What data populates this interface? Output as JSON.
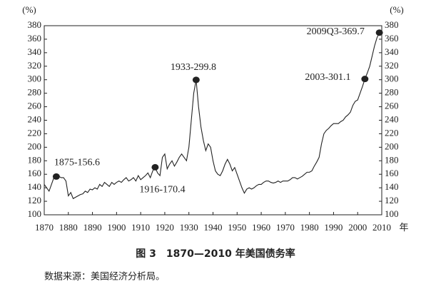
{
  "chart_data": {
    "type": "line",
    "caption": "图 3　1870—2010 年美国债务率",
    "source": "数据来源：美国经济分析局。",
    "y_unit": "(%)",
    "y2_unit": "(%)",
    "x_unit": "年",
    "xlim": [
      1870,
      2010
    ],
    "xticks": [
      1870,
      1880,
      1890,
      1900,
      1910,
      1920,
      1930,
      1940,
      1950,
      1960,
      1970,
      1980,
      1990,
      2000,
      2010
    ],
    "ylim": [
      100,
      380
    ],
    "yticks": [
      100,
      120,
      140,
      160,
      180,
      200,
      220,
      240,
      260,
      280,
      300,
      320,
      340,
      360,
      380
    ],
    "y2lim": [
      100,
      380
    ],
    "y2ticks": [
      100,
      120,
      140,
      160,
      180,
      200,
      220,
      240,
      260,
      280,
      300,
      320,
      340,
      360,
      380
    ],
    "color": "#222222",
    "x": [
      1870,
      1871,
      1872,
      1873,
      1874,
      1875,
      1876,
      1877,
      1878,
      1879,
      1880,
      1881,
      1882,
      1883,
      1884,
      1885,
      1886,
      1887,
      1888,
      1889,
      1890,
      1891,
      1892,
      1893,
      1894,
      1895,
      1896,
      1897,
      1898,
      1899,
      1900,
      1901,
      1902,
      1903,
      1904,
      1905,
      1906,
      1907,
      1908,
      1909,
      1910,
      1911,
      1912,
      1913,
      1914,
      1915,
      1916,
      1917,
      1918,
      1919,
      1920,
      1921,
      1922,
      1923,
      1924,
      1925,
      1926,
      1927,
      1928,
      1929,
      1930,
      1931,
      1932,
      1933,
      1934,
      1935,
      1936,
      1937,
      1938,
      1939,
      1940,
      1941,
      1942,
      1943,
      1944,
      1945,
      1946,
      1947,
      1948,
      1949,
      1950,
      1951,
      1952,
      1953,
      1954,
      1955,
      1956,
      1957,
      1958,
      1959,
      1960,
      1961,
      1962,
      1963,
      1964,
      1965,
      1966,
      1967,
      1968,
      1969,
      1970,
      1971,
      1972,
      1973,
      1974,
      1975,
      1976,
      1977,
      1978,
      1979,
      1980,
      1981,
      1982,
      1983,
      1984,
      1985,
      1986,
      1987,
      1988,
      1989,
      1990,
      1991,
      1992,
      1993,
      1994,
      1995,
      1996,
      1997,
      1998,
      1999,
      2000,
      2001,
      2002,
      2003,
      2004,
      2005,
      2006,
      2007,
      2008,
      2009
    ],
    "values": [
      145,
      140,
      135,
      145,
      155,
      156.6,
      157,
      155,
      155,
      150,
      128,
      133,
      124,
      126,
      128,
      130,
      131,
      135,
      133,
      138,
      137,
      140,
      138,
      145,
      142,
      148,
      145,
      142,
      148,
      145,
      148,
      150,
      148,
      152,
      155,
      150,
      152,
      155,
      150,
      158,
      152,
      155,
      158,
      162,
      155,
      165,
      170.4,
      162,
      158,
      185,
      190,
      168,
      175,
      180,
      172,
      178,
      185,
      190,
      185,
      180,
      200,
      240,
      280,
      299.8,
      260,
      230,
      210,
      195,
      205,
      200,
      180,
      165,
      160,
      158,
      165,
      175,
      182,
      175,
      165,
      170,
      160,
      150,
      140,
      132,
      138,
      140,
      138,
      140,
      143,
      145,
      145,
      148,
      150,
      150,
      148,
      147,
      148,
      150,
      148,
      150,
      150,
      150,
      152,
      155,
      155,
      153,
      155,
      157,
      160,
      163,
      163,
      165,
      172,
      178,
      185,
      205,
      220,
      225,
      228,
      232,
      235,
      235,
      235,
      238,
      240,
      245,
      248,
      252,
      262,
      268,
      270,
      280,
      290,
      301.1,
      310,
      320,
      335,
      350,
      362,
      369.7
    ],
    "highlights": [
      {
        "label": "1875-156.6",
        "x": 1875,
        "y": 156.6
      },
      {
        "label": "1916-170.4",
        "x": 1916,
        "y": 170.4
      },
      {
        "label": "1933-299.8",
        "x": 1933,
        "y": 299.8
      },
      {
        "label": "2003-301.1",
        "x": 2003,
        "y": 301.1
      },
      {
        "label": "2009Q3-369.7",
        "x": 2009,
        "y": 369.7
      }
    ]
  }
}
